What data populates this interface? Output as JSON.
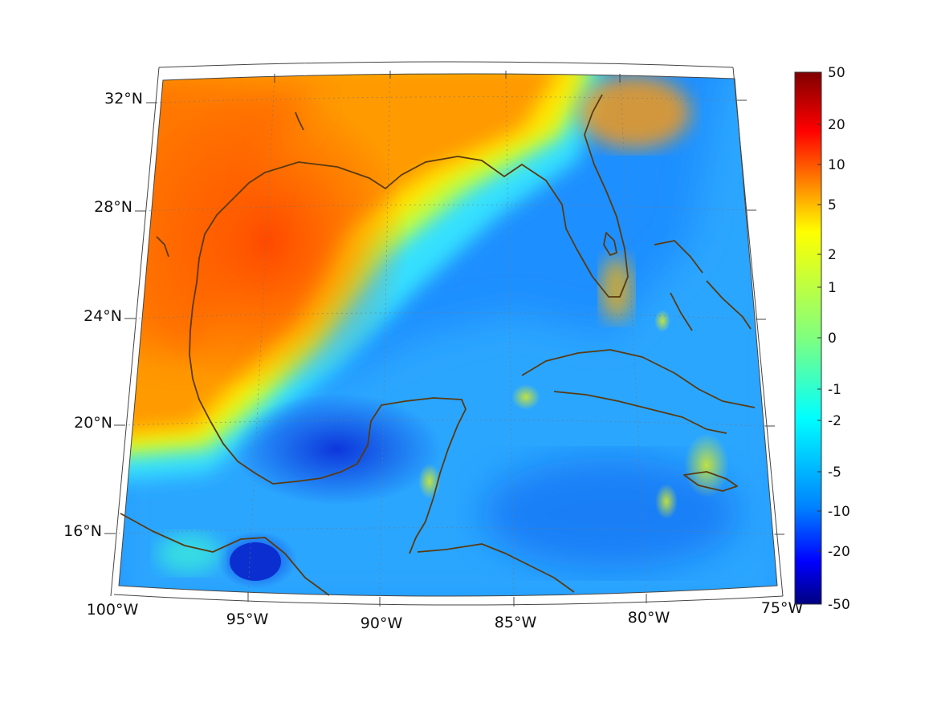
{
  "map": {
    "region": "Gulf of Mexico and Caribbean",
    "lon_range": [
      -100,
      -75
    ],
    "lat_range": [
      14,
      32
    ],
    "lon_ticks": [
      "100°W",
      "95°W",
      "90°W",
      "85°W",
      "80°W",
      "75°W"
    ],
    "lat_ticks": [
      "32°N",
      "28°N",
      "24°N",
      "20°N",
      "16°N"
    ],
    "coastline_color": "#5a3a10",
    "grid": "dotted"
  },
  "colorbar": {
    "colormap": "jet",
    "labels": [
      "50",
      "20",
      "10",
      "5",
      "2",
      "1",
      "0",
      "-1",
      "-2",
      "-5",
      "-10",
      "-20",
      "-50"
    ]
  }
}
